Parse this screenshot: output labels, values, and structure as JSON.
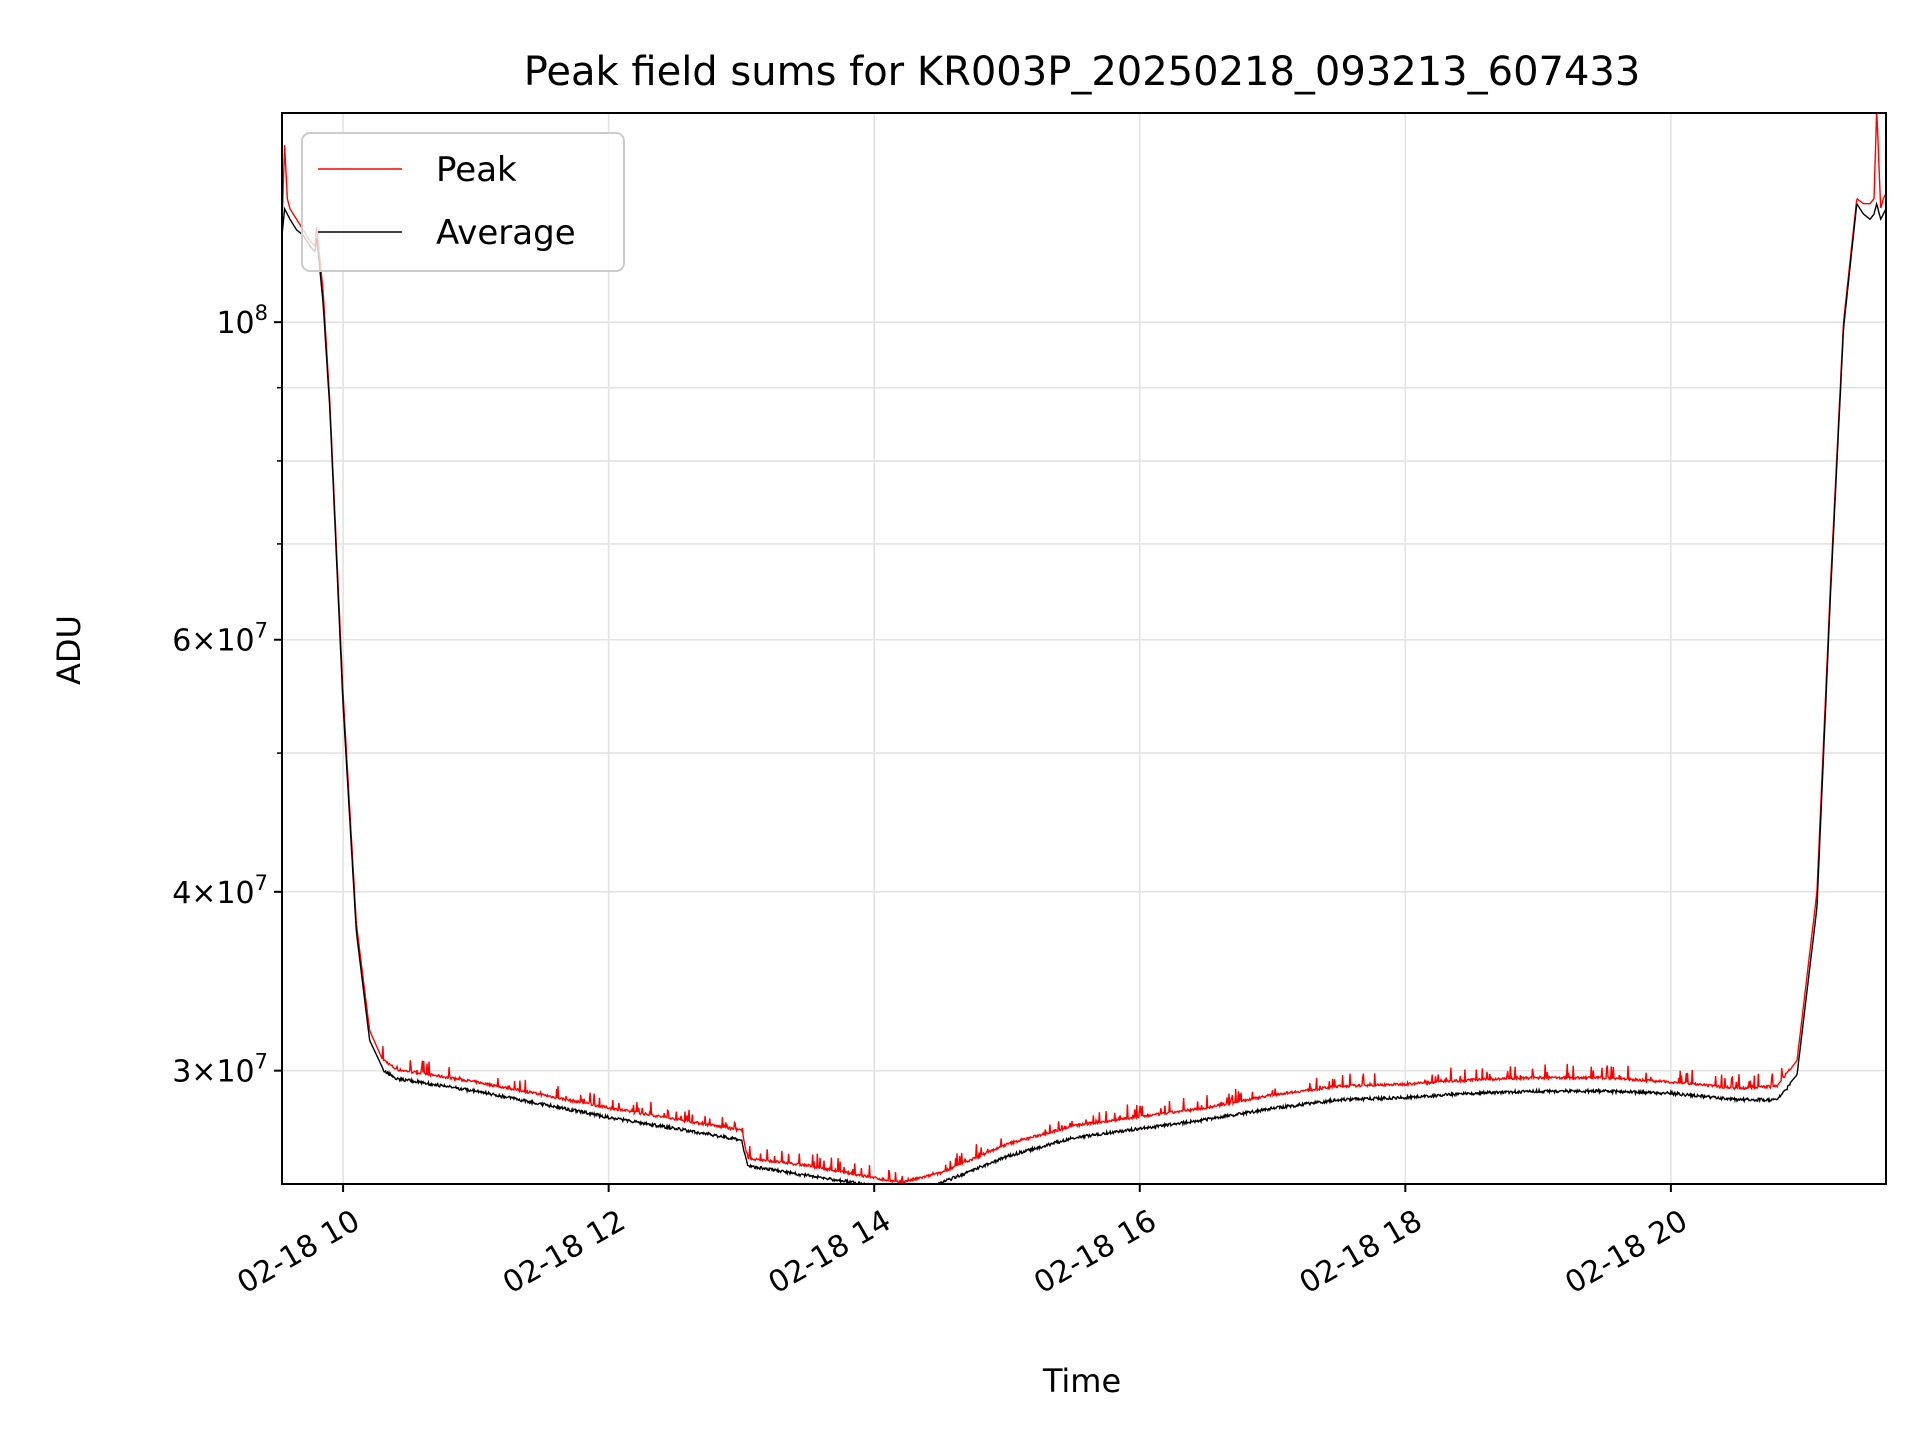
{
  "chart_data": {
    "type": "line",
    "title": "Peak field sums for KR003P_20250218_093213_607433",
    "xlabel": "Time",
    "ylabel": "ADU",
    "yscale": "log",
    "xlim": [
      9.54,
      21.62
    ],
    "ylim": [
      25000000,
      140000000
    ],
    "grid": true,
    "legend_position": "upper-left",
    "x_ticks": [
      {
        "value": 10,
        "label": "02-18 10"
      },
      {
        "value": 12,
        "label": "02-18 12"
      },
      {
        "value": 14,
        "label": "02-18 14"
      },
      {
        "value": 16,
        "label": "02-18 16"
      },
      {
        "value": 18,
        "label": "02-18 18"
      },
      {
        "value": 20,
        "label": "02-18 20"
      }
    ],
    "y_major_ticks": [
      {
        "value": 100000000,
        "base": "10",
        "exp": "8",
        "mant": ""
      },
      {
        "value": 60000000,
        "base": "10",
        "exp": "7",
        "mant": "6"
      },
      {
        "value": 40000000,
        "base": "10",
        "exp": "7",
        "mant": "4"
      },
      {
        "value": 30000000,
        "base": "10",
        "exp": "7",
        "mant": "3"
      }
    ],
    "y_minor_grid": [
      50000000,
      70000000,
      80000000,
      90000000
    ],
    "series": [
      {
        "name": "Peak",
        "color": "#ff0000",
        "x": [
          9.54,
          9.56,
          9.58,
          9.6,
          9.65,
          9.7,
          9.75,
          9.79,
          9.8,
          9.85,
          9.9,
          10.0,
          10.1,
          10.2,
          10.3,
          10.4,
          10.6,
          11.0,
          11.5,
          12.0,
          12.5,
          13.0,
          13.05,
          13.5,
          14.0,
          14.2,
          14.5,
          15.0,
          15.5,
          16.0,
          16.5,
          17.0,
          17.5,
          18.0,
          18.5,
          19.0,
          19.5,
          20.0,
          20.5,
          20.8,
          20.95,
          21.1,
          21.2,
          21.3,
          21.4,
          21.45,
          21.5,
          21.53,
          21.55,
          21.58,
          21.6,
          21.62
        ],
        "y": [
          117000000,
          133000000,
          122000000,
          120000000,
          118000000,
          116000000,
          114000000,
          113000000,
          117000000,
          105000000,
          88000000,
          55000000,
          38000000,
          32000000,
          30500000,
          30000000,
          29800000,
          29400000,
          28800000,
          28200000,
          27700000,
          27200000,
          26000000,
          25700000,
          25200000,
          25000000,
          25400000,
          26600000,
          27400000,
          27800000,
          28200000,
          28800000,
          29200000,
          29300000,
          29500000,
          29600000,
          29600000,
          29400000,
          29100000,
          29200000,
          30500000,
          40000000,
          65000000,
          100000000,
          122000000,
          121000000,
          121000000,
          122000000,
          141000000,
          120000000,
          122000000,
          123000000
        ]
      },
      {
        "name": "Average",
        "color": "#000000",
        "x": [
          9.54,
          9.56,
          9.58,
          9.6,
          9.65,
          9.7,
          9.75,
          9.79,
          9.8,
          9.85,
          9.9,
          10.0,
          10.1,
          10.2,
          10.3,
          10.4,
          10.6,
          11.0,
          11.5,
          12.0,
          12.5,
          13.0,
          13.05,
          13.5,
          14.0,
          14.2,
          14.5,
          15.0,
          15.5,
          16.0,
          16.5,
          17.0,
          17.5,
          18.0,
          18.5,
          19.0,
          19.5,
          20.0,
          20.5,
          20.8,
          20.95,
          21.1,
          21.2,
          21.3,
          21.4,
          21.45,
          21.5,
          21.53,
          21.55,
          21.58,
          21.6,
          21.62
        ],
        "y": [
          115000000,
          120000000,
          119000000,
          118000000,
          116000000,
          115000000,
          113000000,
          112000000,
          115000000,
          103000000,
          87000000,
          54000000,
          37500000,
          31500000,
          30100000,
          29700000,
          29500000,
          29100000,
          28500000,
          27900000,
          27400000,
          26900000,
          25800000,
          25400000,
          25000000,
          24800000,
          25100000,
          26200000,
          27000000,
          27400000,
          27800000,
          28300000,
          28700000,
          28800000,
          29000000,
          29100000,
          29100000,
          29000000,
          28700000,
          28700000,
          29800000,
          39000000,
          64000000,
          99000000,
          121000000,
          119000000,
          118000000,
          119000000,
          121000000,
          118000000,
          119000000,
          120000000
        ]
      }
    ]
  }
}
